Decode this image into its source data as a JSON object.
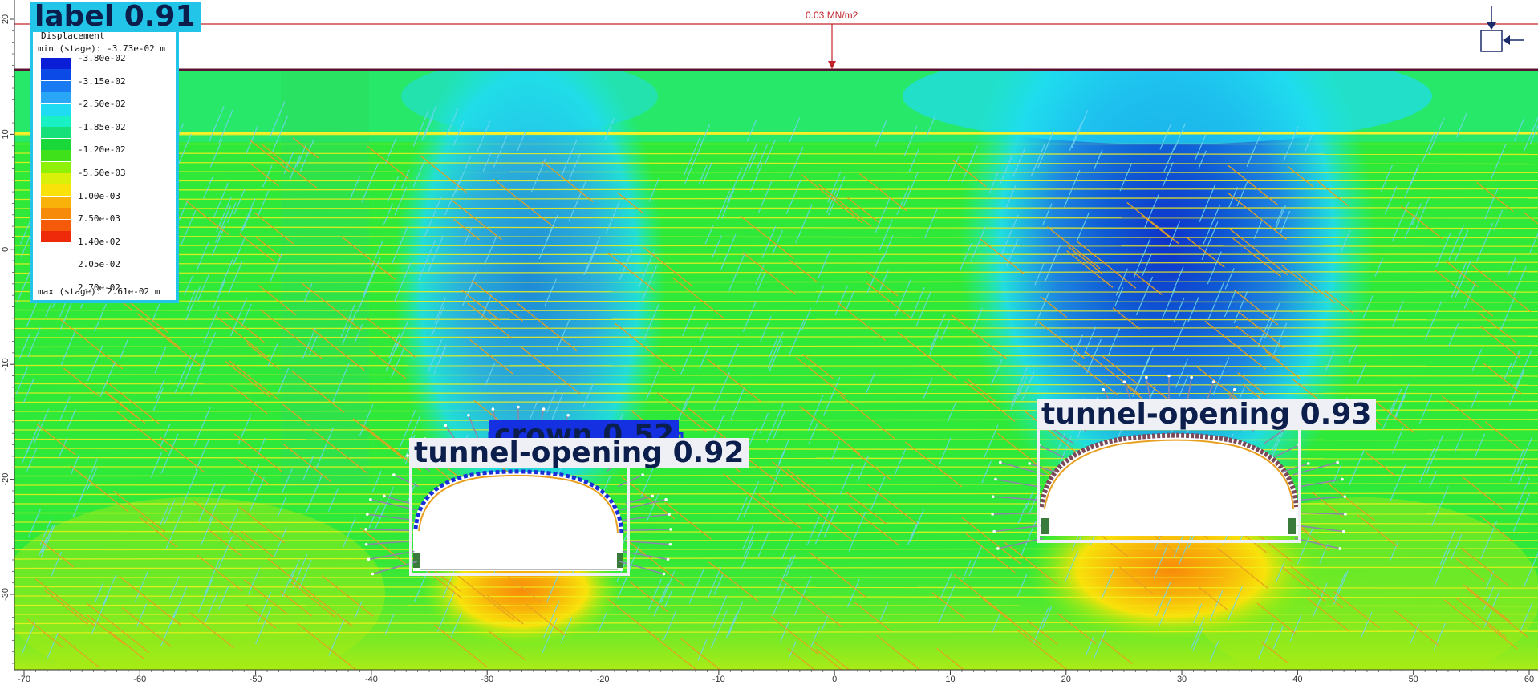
{
  "load": {
    "label": "0.03 MN/m2"
  },
  "legend": {
    "title": "Displacement",
    "min_text": "min (stage): -3.73e-02 m",
    "max_text": "max (stage): 2.61e-02 m",
    "ticks": [
      "-3.80e-02",
      "-3.15e-02",
      "-2.50e-02",
      "-1.85e-02",
      "-1.20e-02",
      "-5.50e-03",
      "1.00e-03",
      "7.50e-03",
      "1.40e-02",
      "2.05e-02",
      "2.70e-02"
    ],
    "colors": [
      "#0a1ed8",
      "#0b4ae6",
      "#1a7af2",
      "#2aa6f7",
      "#1fdcf2",
      "#19f0c4",
      "#15e07a",
      "#1ad83a",
      "#3fe21a",
      "#8ff00a",
      "#d8f00a",
      "#f8e20a",
      "#f8b20a",
      "#f88a0a",
      "#f45a0a",
      "#ee2a0a"
    ]
  },
  "detections": [
    {
      "label": "label 0.91",
      "color": "#22c4e8",
      "text_color": "#0b1e4c"
    },
    {
      "label": "crown 0.52",
      "color": "#1430e0",
      "text_color": "#0b1e4c"
    },
    {
      "label": "tunnel-opening 0.92",
      "color": "#eef0f6",
      "text_color": "#0b1e4c"
    },
    {
      "label": "tunnel-opening 0.93",
      "color": "#eef0f6",
      "text_color": "#0b1e4c"
    }
  ],
  "axes": {
    "x_ticks": [
      "-70",
      "-60",
      "-50",
      "-40",
      "-30",
      "-20",
      "-10",
      "0",
      "10",
      "20",
      "30",
      "40",
      "50",
      "60"
    ],
    "y_ticks": [
      "20",
      "10",
      "0",
      "-10",
      "-20",
      "-30"
    ]
  },
  "colors": {
    "ground_base": "#2ee83a",
    "bolts": "#e8a020",
    "joints": "#6fd6f0",
    "layers": "#f2f01e",
    "load": "#c0242a"
  }
}
